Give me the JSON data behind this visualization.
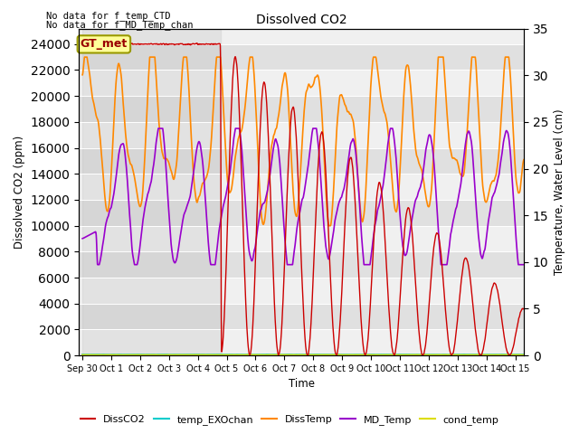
{
  "title": "Dissolved CO2",
  "xlabel": "Time",
  "ylabel_left": "Dissolved CO2 (ppm)",
  "ylabel_right": "Temperature, Water Level (cm)",
  "ylim_left": [
    0,
    25200
  ],
  "ylim_right": [
    0,
    35
  ],
  "yticks_left": [
    0,
    2000,
    4000,
    6000,
    8000,
    10000,
    12000,
    14000,
    16000,
    18000,
    20000,
    22000,
    24000
  ],
  "yticks_right": [
    0,
    5,
    10,
    15,
    20,
    25,
    30,
    35
  ],
  "annotation1": "No data for f_temp_CTD",
  "annotation2": "No data for f_MD_Temp_chan",
  "annotation3": "GT_met",
  "legend_labels": [
    "DissCO2",
    "temp_EXOchan",
    "DissTemp",
    "MD_Temp",
    "cond_temp"
  ],
  "colors": {
    "DissCO2": "#cc0000",
    "temp_EXOchan": "#00cccc",
    "DissTemp": "#ff8800",
    "MD_Temp": "#9900cc",
    "cond_temp": "#dddd00"
  },
  "xstart": -0.12,
  "xend": 15.3,
  "background_color": "#ffffff",
  "plot_background_light": "#f0f0f0",
  "plot_background_dark": "#e0e0e0",
  "shade_alpha": 0.25
}
